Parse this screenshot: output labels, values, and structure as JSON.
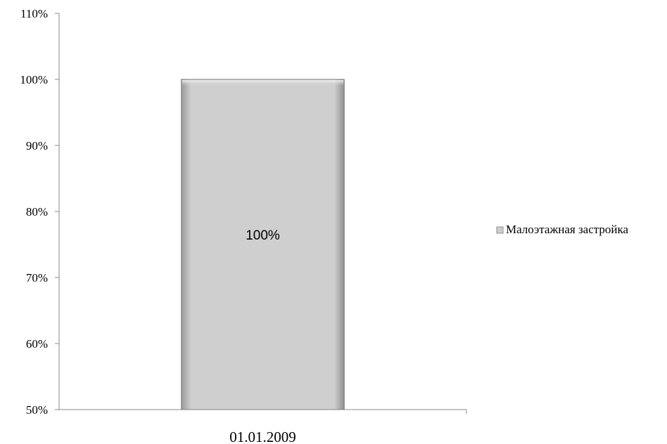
{
  "chart_data": {
    "type": "bar",
    "categories": [
      "01.01.2009"
    ],
    "series": [
      {
        "name": "Малоэтажная застройка",
        "values": [
          100
        ],
        "color": "#cdcdcd"
      }
    ],
    "data_labels": [
      "100%"
    ],
    "ylim": [
      50,
      110
    ],
    "y_ticks": [
      50,
      60,
      70,
      80,
      90,
      100,
      110
    ],
    "y_tick_labels": [
      "50%",
      "60%",
      "70%",
      "80%",
      "90%",
      "100%",
      "110%"
    ],
    "legend_position": "right",
    "grid": false
  }
}
